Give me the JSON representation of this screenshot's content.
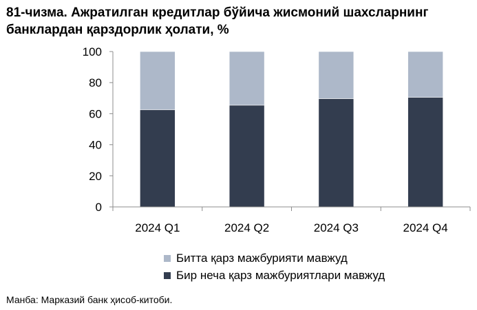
{
  "title_line1": "81-чизма. Ажратилган кредитлар бўйича жисмоний шахсларнинг",
  "title_line2": "банклардан қарздорлик ҳолати, %",
  "source": "Манба: Марказий банк ҳисоб-китоби.",
  "chart_data": {
    "type": "bar",
    "stacked": true,
    "categories": [
      "2024 Q1",
      "2024 Q2",
      "2024 Q3",
      "2024 Q4"
    ],
    "series": [
      {
        "name": "Бир неча қарз мажбуриятлари мавжуд",
        "values": [
          62.5,
          65.5,
          69.7,
          70.5
        ],
        "color": "#333d4f"
      },
      {
        "name": "Битта қарз мажбурияти мавжуд",
        "values": [
          37.5,
          34.5,
          30.3,
          29.5
        ],
        "color": "#adb8c9"
      }
    ],
    "ylim": [
      0,
      100
    ],
    "yticks": [
      0,
      20,
      40,
      60,
      80,
      100
    ],
    "grid": false,
    "legend_position": "bottom"
  }
}
